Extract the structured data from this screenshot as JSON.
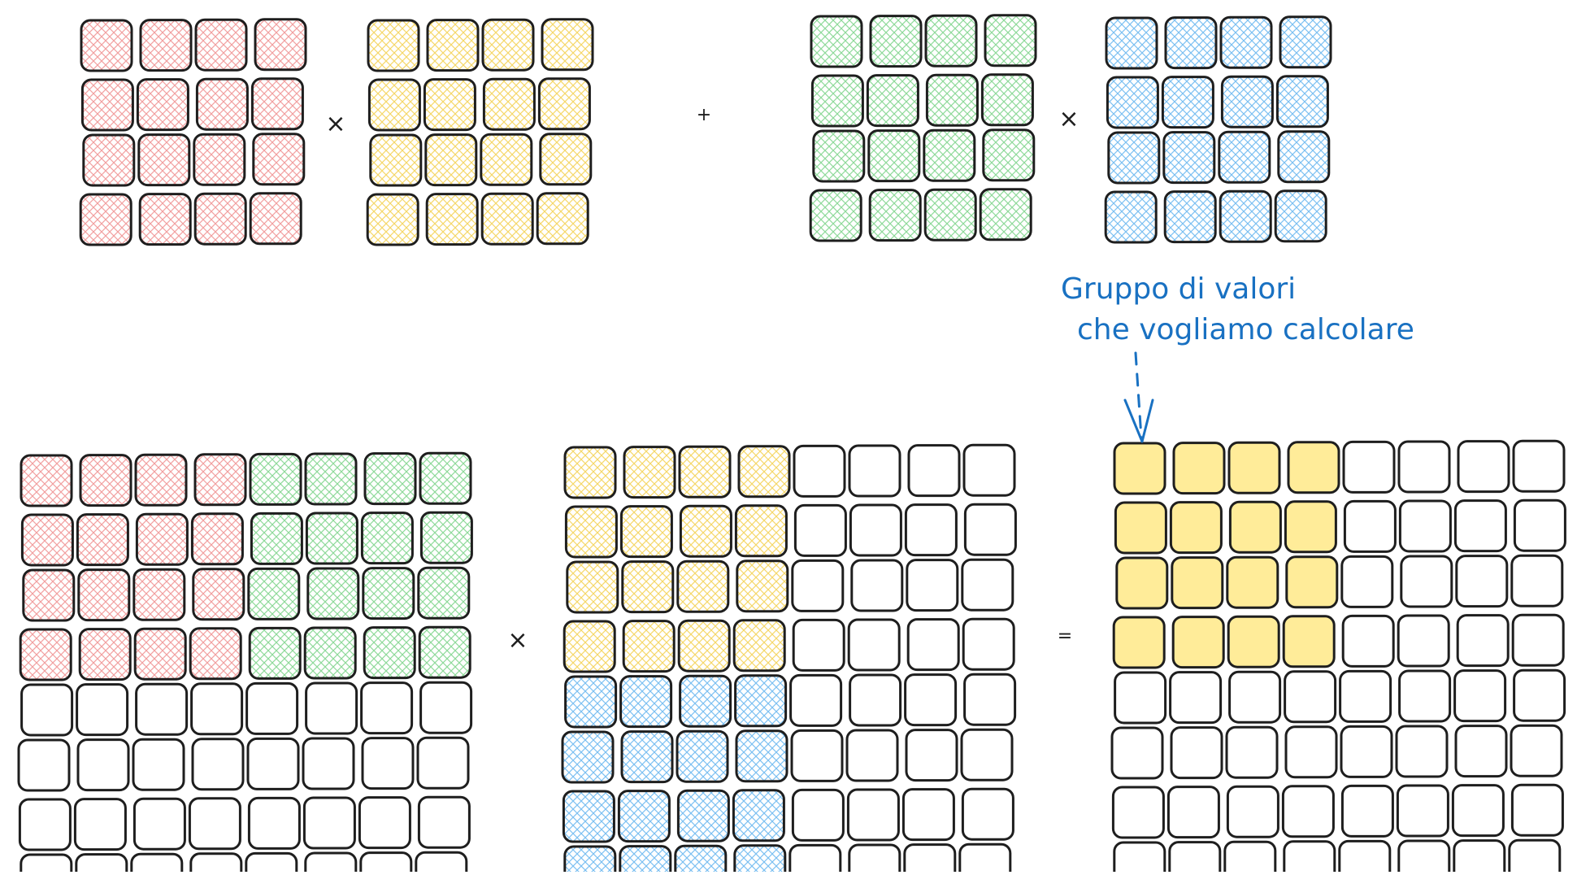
{
  "colors": {
    "red": "#ffc9c9",
    "yellow": "#ffec99",
    "green": "#b2f2bb",
    "blue": "#a5d8ff",
    "yellow_solid": "#ffec99",
    "stroke": "#1e1e1e",
    "annotation": "#1971c2"
  },
  "operators": {
    "times_1": "×",
    "plus": "+",
    "times_2": "×",
    "times_3": "×",
    "equals": "="
  },
  "annotation": {
    "line_1": "Gruppo di valori",
    "line_2": "che vogliamo calcolare"
  },
  "matrices": {
    "top_red": {
      "rows": 4,
      "cols": 4,
      "fill": [
        "red"
      ]
    },
    "top_yellow": {
      "rows": 4,
      "cols": 4,
      "fill": [
        "yellow"
      ]
    },
    "top_green": {
      "rows": 4,
      "cols": 4,
      "fill": [
        "green"
      ]
    },
    "top_blue": {
      "rows": 4,
      "cols": 4,
      "fill": [
        "blue"
      ]
    },
    "bottom_left": {
      "rows": 8,
      "cols": 8,
      "blocks": [
        {
          "rows": [
            0,
            3
          ],
          "cols": [
            0,
            3
          ],
          "color": "red",
          "style": "hatch"
        },
        {
          "rows": [
            0,
            3
          ],
          "cols": [
            4,
            7
          ],
          "color": "green",
          "style": "hatch"
        }
      ]
    },
    "bottom_middle": {
      "rows": 8,
      "cols": 8,
      "blocks": [
        {
          "rows": [
            0,
            3
          ],
          "cols": [
            0,
            3
          ],
          "color": "yellow",
          "style": "hatch"
        },
        {
          "rows": [
            4,
            7
          ],
          "cols": [
            0,
            3
          ],
          "color": "blue",
          "style": "hatch"
        }
      ]
    },
    "bottom_result": {
      "rows": 8,
      "cols": 8,
      "blocks": [
        {
          "rows": [
            0,
            3
          ],
          "cols": [
            0,
            3
          ],
          "color": "yellow_solid",
          "style": "solid"
        }
      ]
    }
  }
}
